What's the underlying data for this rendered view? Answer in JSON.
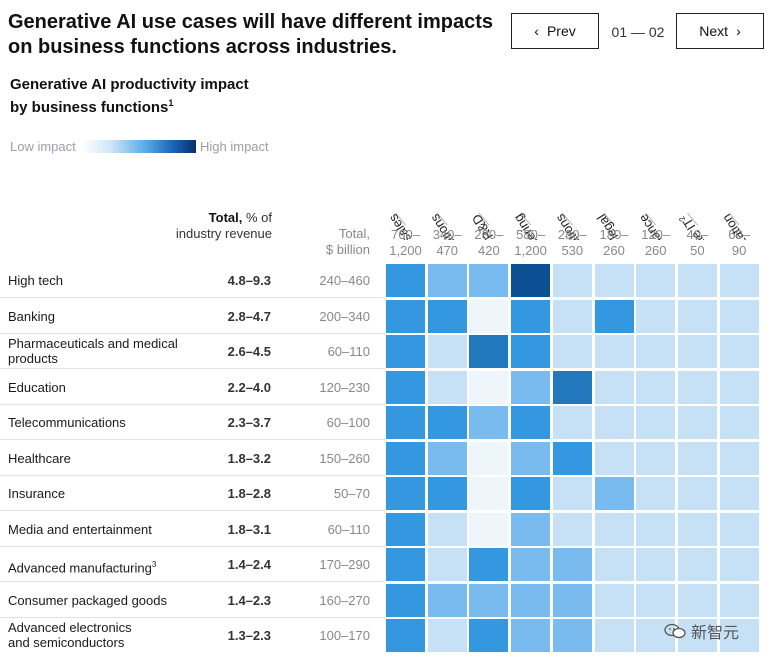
{
  "header": {
    "title": "Generative AI use cases will have different impacts on business functions across industries.",
    "prev_label": "Prev",
    "next_label": "Next",
    "page_indicator": "01 — 02"
  },
  "subtitle": "Generative AI productivity impact by business functions",
  "subtitle_footnote": "1",
  "legend": {
    "low": "Low impact",
    "high": "High impact"
  },
  "headers": {
    "total_bold": "Total,",
    "total_rest": "% of industry revenue",
    "billion_line1": "Total,",
    "billion_line2": "$ billion"
  },
  "chart_data": {
    "type": "heatmap",
    "title": "Generative AI productivity impact by business functions",
    "scale": {
      "low_label": "Low impact",
      "high_label": "High impact"
    },
    "functions": [
      "Marketing and sales",
      "Customer operations",
      "Product and R&D",
      "Software engineering",
      "Supply chain and operations",
      "Risk and legal",
      "Strategy and finance",
      "Corporate IT",
      "Talent and organization"
    ],
    "function_footnotes": [
      "",
      "",
      "",
      "",
      "",
      "",
      "",
      "2",
      ""
    ],
    "function_ranges": [
      "760–1,200",
      "340–470",
      "230–420",
      "580–1,200",
      "280–530",
      "180–260",
      "120–260",
      "40–50",
      "60–90"
    ],
    "industries": [
      {
        "name": "High tech",
        "footnote": "",
        "pct_revenue": "4.8–9.3",
        "billion": "240–460",
        "impact": [
          3,
          2,
          2,
          5,
          1,
          1,
          1,
          1,
          1
        ]
      },
      {
        "name": "Banking",
        "footnote": "",
        "pct_revenue": "2.8–4.7",
        "billion": "200–340",
        "impact": [
          3,
          3,
          0,
          3,
          1,
          3,
          1,
          1,
          1
        ]
      },
      {
        "name": "Pharmaceuticals and medical products",
        "footnote": "",
        "pct_revenue": "2.6–4.5",
        "billion": "60–110",
        "impact": [
          3,
          1,
          4,
          3,
          1,
          1,
          1,
          1,
          1
        ]
      },
      {
        "name": "Education",
        "footnote": "",
        "pct_revenue": "2.2–4.0",
        "billion": "120–230",
        "impact": [
          3,
          1,
          0,
          2,
          4,
          1,
          1,
          1,
          1
        ]
      },
      {
        "name": "Telecommunications",
        "footnote": "",
        "pct_revenue": "2.3–3.7",
        "billion": "60–100",
        "impact": [
          3,
          3,
          2,
          3,
          1,
          1,
          1,
          1,
          1
        ]
      },
      {
        "name": "Healthcare",
        "footnote": "",
        "pct_revenue": "1.8–3.2",
        "billion": "150–260",
        "impact": [
          3,
          2,
          0,
          2,
          3,
          1,
          1,
          1,
          1
        ]
      },
      {
        "name": "Insurance",
        "footnote": "",
        "pct_revenue": "1.8–2.8",
        "billion": "50–70",
        "impact": [
          3,
          3,
          0,
          3,
          1,
          2,
          1,
          1,
          1
        ]
      },
      {
        "name": "Media and entertainment",
        "footnote": "",
        "pct_revenue": "1.8–3.1",
        "billion": "60–110",
        "impact": [
          3,
          1,
          0,
          2,
          1,
          1,
          1,
          1,
          1
        ]
      },
      {
        "name": "Advanced manufacturing",
        "footnote": "3",
        "pct_revenue": "1.4–2.4",
        "billion": "170–290",
        "impact": [
          3,
          1,
          3,
          2,
          2,
          1,
          1,
          1,
          1
        ]
      },
      {
        "name": "Consumer packaged goods",
        "footnote": "",
        "pct_revenue": "1.4–2.3",
        "billion": "160–270",
        "impact": [
          3,
          2,
          2,
          2,
          2,
          1,
          1,
          1,
          1
        ]
      },
      {
        "name": "Advanced electronics and semiconductors",
        "footnote": "",
        "pct_revenue": "1.3–2.3",
        "billion": "100–170",
        "impact": [
          3,
          1,
          3,
          2,
          2,
          1,
          1,
          1,
          1
        ]
      }
    ],
    "impact_colors": [
      "#eef5fb",
      "#c6e0f6",
      "#79bbee",
      "#3498e0",
      "#2377bd",
      "#0c4f93"
    ]
  },
  "watermark": {
    "text": "新智元",
    "icon": "wechat-icon"
  }
}
